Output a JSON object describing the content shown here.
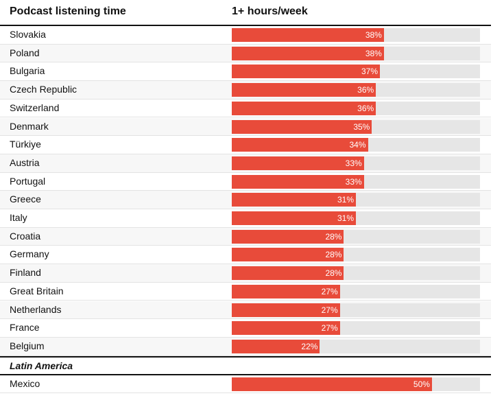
{
  "chart_data": {
    "type": "bar",
    "header": {
      "label_column": "Podcast listening time",
      "value_column": "1+ hours/week"
    },
    "xlim": [
      0,
      62
    ],
    "groups": [
      {
        "name": "",
        "rows": [
          {
            "label": "Slovakia",
            "value": 38,
            "display": "38%"
          },
          {
            "label": "Poland",
            "value": 38,
            "display": "38%"
          },
          {
            "label": "Bulgaria",
            "value": 37,
            "display": "37%"
          },
          {
            "label": "Czech Republic",
            "value": 36,
            "display": "36%"
          },
          {
            "label": "Switzerland",
            "value": 36,
            "display": "36%"
          },
          {
            "label": "Denmark",
            "value": 35,
            "display": "35%"
          },
          {
            "label": "Türkiye",
            "value": 34,
            "display": "34%"
          },
          {
            "label": "Austria",
            "value": 33,
            "display": "33%"
          },
          {
            "label": "Portugal",
            "value": 33,
            "display": "33%"
          },
          {
            "label": "Greece",
            "value": 31,
            "display": "31%"
          },
          {
            "label": "Italy",
            "value": 31,
            "display": "31%"
          },
          {
            "label": "Croatia",
            "value": 28,
            "display": "28%"
          },
          {
            "label": "Germany",
            "value": 28,
            "display": "28%"
          },
          {
            "label": "Finland",
            "value": 28,
            "display": "28%"
          },
          {
            "label": "Great Britain",
            "value": 27,
            "display": "27%"
          },
          {
            "label": "Netherlands",
            "value": 27,
            "display": "27%"
          },
          {
            "label": "France",
            "value": 27,
            "display": "27%"
          },
          {
            "label": "Belgium",
            "value": 22,
            "display": "22%"
          }
        ]
      },
      {
        "name": "Latin America",
        "rows": [
          {
            "label": "Mexico",
            "value": 50,
            "display": "50%"
          }
        ]
      }
    ],
    "bar_color": "#e84b3a",
    "track_color": "#e6e6e6"
  }
}
